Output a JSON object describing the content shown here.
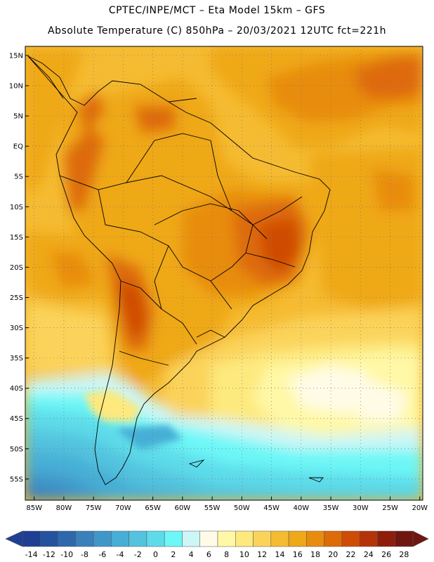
{
  "header": {
    "line1": "CPTEC/INPE/MCT –  Eta Model 15km – GFS",
    "line2": "Absolute Temperature (C) 850hPa – 20/03/2021 12UTC fct=221h"
  },
  "map": {
    "lon_min": -86.5,
    "lon_max": -19.5,
    "lat_min": -58.5,
    "lat_max": 16.5,
    "lon_ticks": [
      {
        "lon": -85,
        "label": "85W"
      },
      {
        "lon": -80,
        "label": "80W"
      },
      {
        "lon": -75,
        "label": "75W"
      },
      {
        "lon": -70,
        "label": "70W"
      },
      {
        "lon": -65,
        "label": "65W"
      },
      {
        "lon": -60,
        "label": "60W"
      },
      {
        "lon": -55,
        "label": "55W"
      },
      {
        "lon": -50,
        "label": "50W"
      },
      {
        "lon": -45,
        "label": "45W"
      },
      {
        "lon": -40,
        "label": "40W"
      },
      {
        "lon": -35,
        "label": "35W"
      },
      {
        "lon": -30,
        "label": "30W"
      },
      {
        "lon": -25,
        "label": "25W"
      },
      {
        "lon": -20,
        "label": "20W"
      }
    ],
    "lat_ticks": [
      {
        "lat": 15,
        "label": "15N"
      },
      {
        "lat": 10,
        "label": "10N"
      },
      {
        "lat": 5,
        "label": "5N"
      },
      {
        "lat": 0,
        "label": "EQ"
      },
      {
        "lat": -5,
        "label": "5S"
      },
      {
        "lat": -10,
        "label": "10S"
      },
      {
        "lat": -15,
        "label": "15S"
      },
      {
        "lat": -20,
        "label": "20S"
      },
      {
        "lat": -25,
        "label": "25S"
      },
      {
        "lat": -30,
        "label": "30S"
      },
      {
        "lat": -35,
        "label": "35S"
      },
      {
        "lat": -40,
        "label": "40S"
      },
      {
        "lat": -45,
        "label": "45S"
      },
      {
        "lat": -50,
        "label": "50S"
      },
      {
        "lat": -55,
        "label": "55S"
      }
    ],
    "grid": "dotted"
  },
  "colorbar": {
    "labels": [
      "-14",
      "-12",
      "-10",
      "-8",
      "-6",
      "-4",
      "-2",
      "0",
      "2",
      "4",
      "6",
      "8",
      "10",
      "12",
      "14",
      "16",
      "18",
      "20",
      "22",
      "24",
      "26",
      "28"
    ],
    "colors": [
      "#1f3f94",
      "#24529f",
      "#2d68ad",
      "#3a80bb",
      "#3f97c9",
      "#47aed5",
      "#53c3de",
      "#5ddbe9",
      "#6df7f7",
      "#cdf6f6",
      "#fffbe6",
      "#fff8a6",
      "#fde97e",
      "#fbd35a",
      "#f5bb32",
      "#efa818",
      "#e88c10",
      "#de6a08",
      "#cf4c05",
      "#b43309",
      "#8e1d0b",
      "#6f1610"
    ]
  }
}
